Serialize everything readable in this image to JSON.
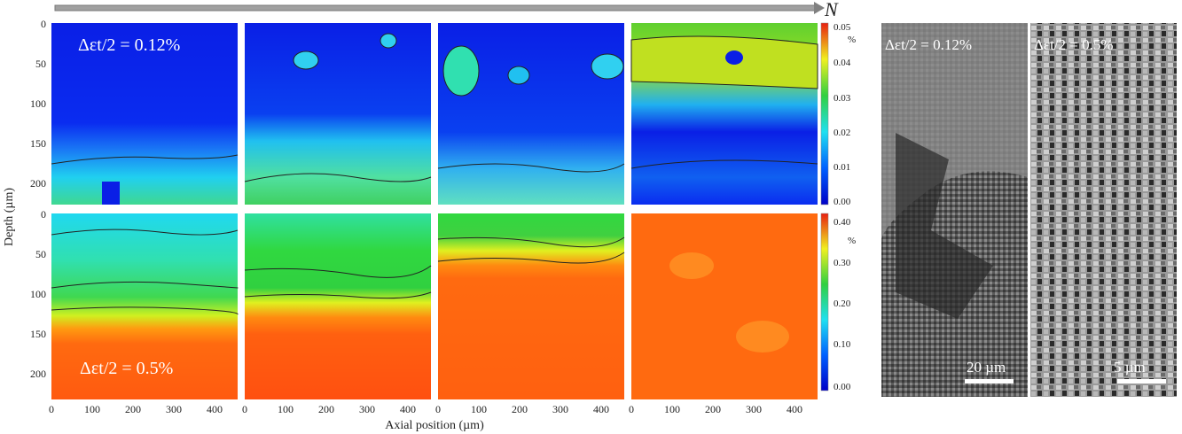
{
  "figure": {
    "arrow_label": "N",
    "x_axis_title": "Axial position (µm)",
    "y_axis_title": "Depth (µm)",
    "x_ticks": [
      "0",
      "100",
      "200",
      "300",
      "400"
    ],
    "y_ticks": [
      "0",
      "50",
      "100",
      "150",
      "200"
    ],
    "top_row_label": "Δεt/2 = 0.12%",
    "bottom_row_label": "Δεt/2 = 0.5%",
    "colorbar_top": {
      "unit": "%",
      "ticks": [
        "0.05",
        "0.04",
        "0.03",
        "0.02",
        "0.01",
        "0.00"
      ]
    },
    "colorbar_bottom": {
      "unit": "%",
      "ticks": [
        "0.40",
        "0.30",
        "0.20",
        "0.10",
        "0.00"
      ]
    },
    "sem_images": [
      {
        "label": "Δεt/2 = 0.12%",
        "scale_bar": "20 µm"
      },
      {
        "label": "Δεt/2 = 0.5%",
        "scale_bar": "5 µm"
      }
    ],
    "colors": {
      "blue": "#0a1fe6",
      "cyan": "#20e0f0",
      "green": "#30d040",
      "yellow": "#f0f020",
      "orange": "#ff6a10"
    }
  }
}
